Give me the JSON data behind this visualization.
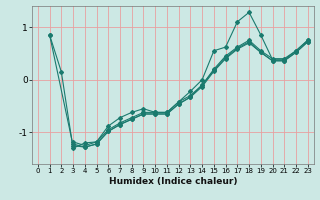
{
  "xlabel": "Humidex (Indice chaleur)",
  "xlim": [
    -0.5,
    23.5
  ],
  "ylim": [
    -1.6,
    1.4
  ],
  "xticks": [
    0,
    1,
    2,
    3,
    4,
    5,
    6,
    7,
    8,
    9,
    10,
    11,
    12,
    13,
    14,
    15,
    16,
    17,
    18,
    19,
    20,
    21,
    22,
    23
  ],
  "yticks": [
    -1,
    0,
    1
  ],
  "bg_color": "#cce8e4",
  "grid_color": "#e8a0a0",
  "line_color": "#1a7a6e",
  "lines": [
    {
      "x": [
        1,
        2,
        3,
        4,
        5,
        6,
        7,
        8,
        9,
        10,
        11,
        12,
        13,
        14,
        15,
        16,
        17,
        18,
        19,
        20,
        21,
        22,
        23
      ],
      "y": [
        0.85,
        0.15,
        -1.3,
        -1.2,
        -1.18,
        -0.88,
        -0.72,
        -0.62,
        -0.55,
        -0.62,
        -0.62,
        -0.42,
        -0.22,
        0.0,
        0.55,
        0.62,
        1.1,
        1.28,
        0.85,
        0.38,
        0.38,
        0.55,
        0.75
      ]
    },
    {
      "x": [
        3,
        4,
        5,
        6,
        7,
        8,
        9,
        10,
        11,
        12,
        13,
        14,
        15,
        16,
        17,
        18,
        19,
        20,
        21,
        22,
        23
      ],
      "y": [
        -1.18,
        -1.25,
        -1.18,
        -0.95,
        -0.82,
        -0.72,
        -0.62,
        -0.62,
        -0.62,
        -0.42,
        -0.3,
        -0.1,
        0.2,
        0.45,
        0.62,
        0.75,
        0.55,
        0.4,
        0.4,
        0.55,
        0.75
      ]
    },
    {
      "x": [
        3,
        4,
        5,
        6,
        7,
        8,
        9,
        10,
        11,
        12,
        13,
        14,
        15,
        16,
        17,
        18,
        19,
        20,
        21,
        22,
        23
      ],
      "y": [
        -1.22,
        -1.28,
        -1.22,
        -0.98,
        -0.85,
        -0.75,
        -0.65,
        -0.65,
        -0.65,
        -0.46,
        -0.33,
        -0.13,
        0.16,
        0.4,
        0.58,
        0.7,
        0.52,
        0.36,
        0.36,
        0.52,
        0.72
      ]
    },
    {
      "x": [
        1,
        3,
        4,
        5,
        6,
        7,
        8,
        9,
        10,
        11,
        12,
        13,
        14,
        15,
        16,
        17,
        18,
        19,
        20,
        21,
        22,
        23
      ],
      "y": [
        0.85,
        -1.25,
        -1.28,
        -1.22,
        -0.98,
        -0.85,
        -0.75,
        -0.65,
        -0.65,
        -0.65,
        -0.46,
        -0.33,
        -0.1,
        0.18,
        0.42,
        0.6,
        0.72,
        0.52,
        0.36,
        0.36,
        0.52,
        0.72
      ]
    }
  ]
}
